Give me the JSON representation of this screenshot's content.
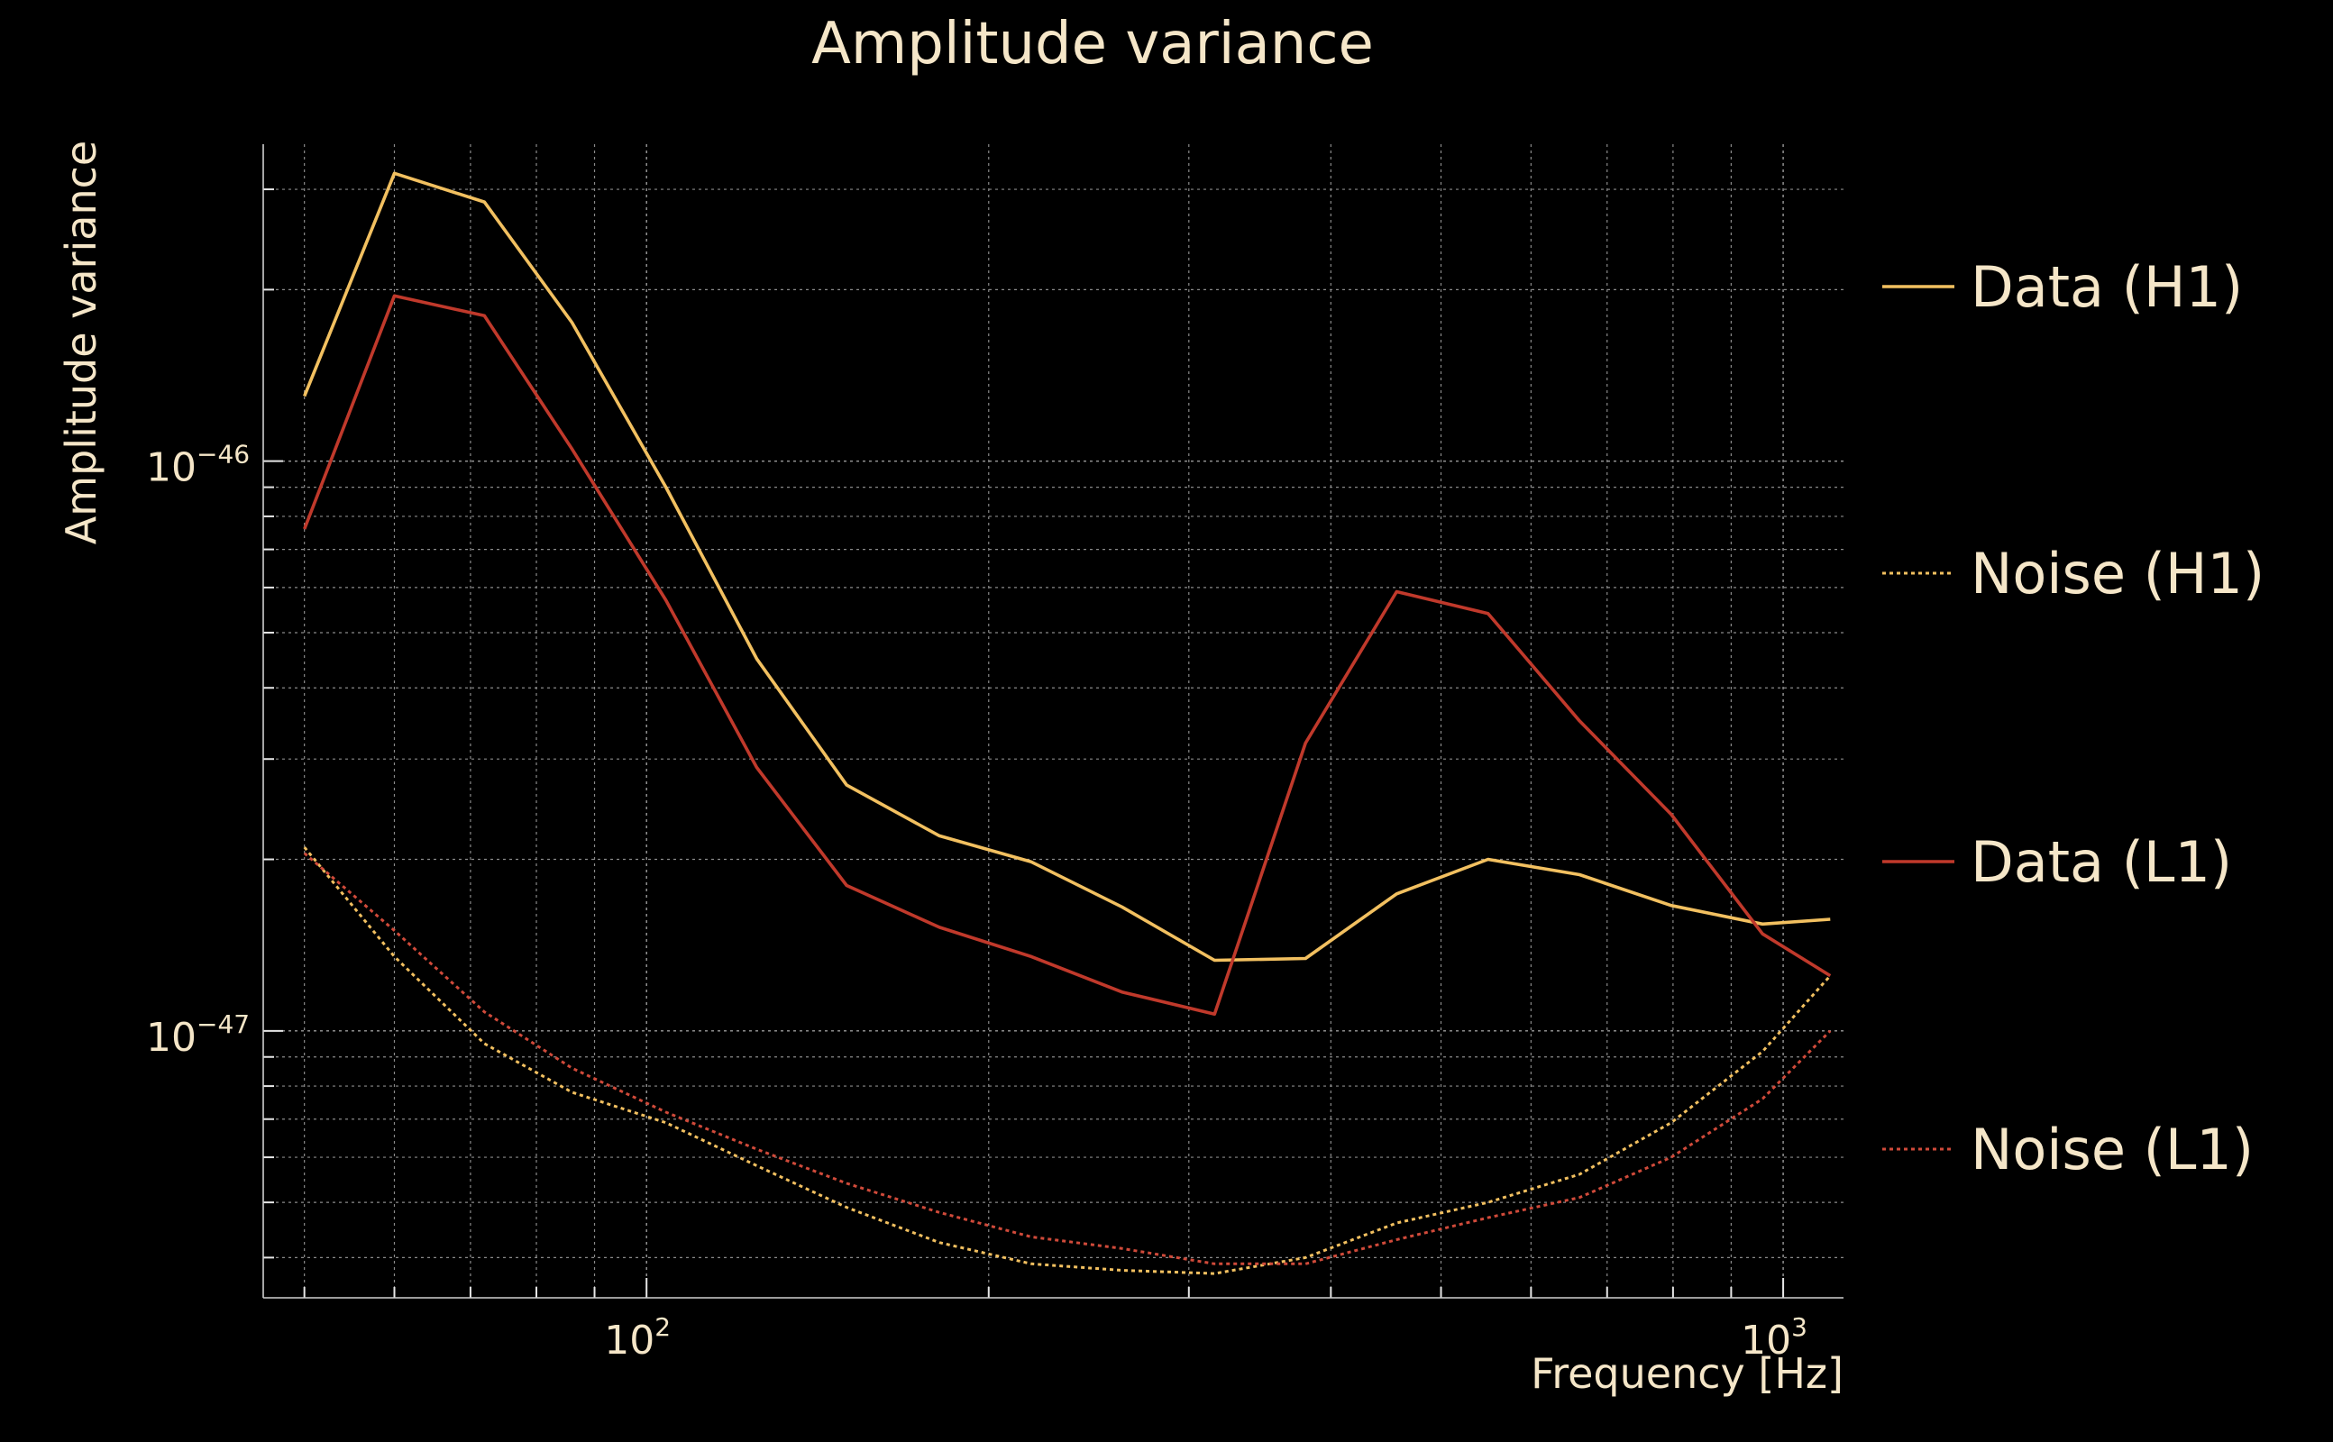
{
  "chart_data": {
    "type": "line",
    "title": "Amplitude variance",
    "xlabel": "Frequency [Hz]",
    "ylabel": "Amplitude variance",
    "xscale": "log",
    "yscale": "log",
    "xlim": [
      46,
      1130
    ],
    "ylim": [
      3.4e-48,
      3.6e-46
    ],
    "x_ticks": [
      {
        "value": 100,
        "base": "10",
        "exp": "2"
      },
      {
        "value": 1000,
        "base": "10",
        "exp": "3"
      }
    ],
    "y_ticks": [
      {
        "value": 1e-46,
        "base": "10",
        "exp": "−46"
      },
      {
        "value": 1e-47,
        "base": "10",
        "exp": "−47"
      }
    ],
    "grid": true,
    "legend_position": "right",
    "x": [
      50,
      60,
      72,
      86,
      104,
      125,
      150,
      181,
      218,
      262,
      316,
      380,
      457,
      550,
      662,
      797,
      959,
      1100
    ],
    "series": [
      {
        "name": "Data (H1)",
        "color": "#f2c060",
        "dash": "solid",
        "values": [
          1.3e-46,
          3.2e-46,
          2.85e-46,
          1.75e-46,
          9e-47,
          4.5e-47,
          2.7e-47,
          2.2e-47,
          1.98e-47,
          1.65e-47,
          1.33e-47,
          1.34e-47,
          1.74e-47,
          2e-47,
          1.88e-47,
          1.66e-47,
          1.54e-47,
          1.57e-47
        ]
      },
      {
        "name": "Noise (H1)",
        "color": "#f2c060",
        "dash": "dotted",
        "values": [
          2.1e-47,
          1.35e-47,
          9.5e-48,
          7.8e-48,
          6.9e-48,
          5.8e-48,
          4.9e-48,
          4.25e-48,
          3.9e-48,
          3.8e-48,
          3.75e-48,
          4e-48,
          4.6e-48,
          5e-48,
          5.6e-48,
          6.9e-48,
          9.2e-48,
          1.25e-47
        ]
      },
      {
        "name": "Data (L1)",
        "color": "#c0392b",
        "dash": "solid",
        "values": [
          7.6e-47,
          1.95e-46,
          1.8e-46,
          1.05e-46,
          5.7e-47,
          2.9e-47,
          1.8e-47,
          1.52e-47,
          1.35e-47,
          1.17e-47,
          1.07e-47,
          3.2e-47,
          5.9e-47,
          5.4e-47,
          3.5e-47,
          2.4e-47,
          1.48e-47,
          1.25e-47
        ]
      },
      {
        "name": "Noise (L1)",
        "color": "#d04a3a",
        "dash": "dotted",
        "values": [
          2.05e-47,
          1.5e-47,
          1.08e-47,
          8.6e-48,
          7.2e-48,
          6.2e-48,
          5.4e-48,
          4.8e-48,
          4.35e-48,
          4.15e-48,
          3.9e-48,
          3.9e-48,
          4.3e-48,
          4.7e-48,
          5.1e-48,
          6e-48,
          7.6e-48,
          1e-47
        ]
      }
    ]
  }
}
